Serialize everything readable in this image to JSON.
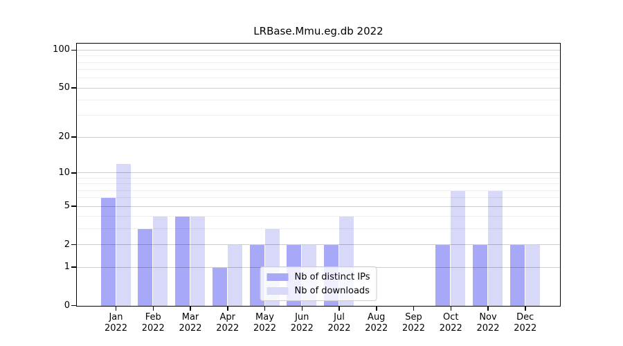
{
  "chart_data": {
    "type": "bar",
    "title": "LRBase.Mmu.eg.db 2022",
    "categories": [
      "Jan",
      "Feb",
      "Mar",
      "Apr",
      "May",
      "Jun",
      "Jul",
      "Aug",
      "Sep",
      "Oct",
      "Nov",
      "Dec"
    ],
    "year_label": "2022",
    "series": [
      {
        "name": "Nb of distinct IPs",
        "color": "#a8a8f8",
        "values": [
          6,
          3,
          4,
          1,
          2,
          2,
          2,
          0,
          0,
          2,
          2,
          2
        ]
      },
      {
        "name": "Nb of downloads",
        "color": "#d8d8f8",
        "values": [
          12,
          4,
          4,
          2,
          3,
          2,
          4,
          0,
          0,
          7,
          7,
          2
        ]
      }
    ],
    "scale": "log1p",
    "ylim": [
      0,
      112
    ],
    "yticks_major": [
      0,
      1,
      2,
      5,
      10,
      20,
      50,
      100
    ],
    "yticks_minor": [
      3,
      4,
      6,
      7,
      8,
      9,
      30,
      40,
      60,
      70,
      80,
      90
    ],
    "grid": true,
    "legend_position": "lower center",
    "colors": {
      "major_grid": "rgba(0,0,0,0.20)",
      "minor_grid": "rgba(0,0,0,0.065)",
      "spine": "#000000",
      "text": "#000000",
      "background": "#ffffff"
    }
  }
}
